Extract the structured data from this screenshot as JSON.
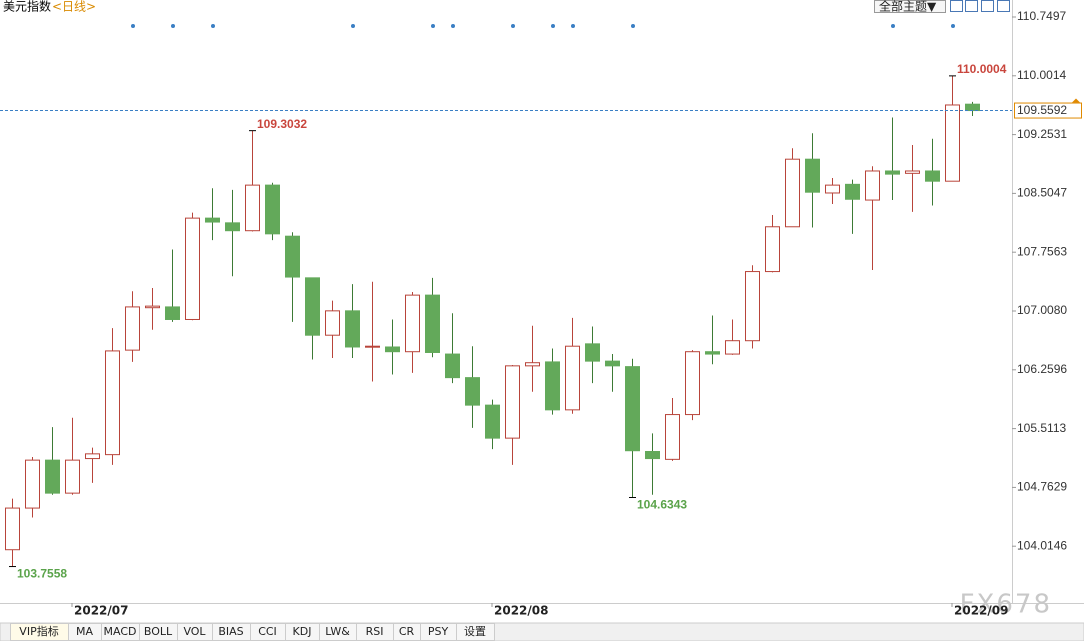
{
  "chart_data": {
    "type": "candlestick",
    "title": "美元指数",
    "subtitle": "<日线>",
    "categories": [
      null,
      null,
      null,
      "2022/07",
      null,
      null,
      null,
      null,
      null,
      null,
      null,
      null,
      null,
      null,
      null,
      null,
      null,
      null,
      null,
      null,
      null,
      null,
      null,
      null,
      "2022/08",
      null,
      null,
      null,
      null,
      null,
      null,
      null,
      null,
      null,
      null,
      null,
      null,
      null,
      null,
      null,
      null,
      null,
      null,
      null,
      null,
      null,
      null,
      "2022/09",
      null
    ],
    "series": [
      {
        "name": "美元指数",
        "up_color": "#b8443a",
        "down_color": "#63a95a",
        "open": [
          103.97,
          104.5,
          105.11,
          104.69,
          105.13,
          105.18,
          106.51,
          107.05,
          107.06,
          106.9,
          108.19,
          108.13,
          108.03,
          108.61,
          107.96,
          107.43,
          106.7,
          107.01,
          106.55,
          106.55,
          106.49,
          107.21,
          106.46,
          106.16,
          105.81,
          105.39,
          106.31,
          106.36,
          105.75,
          106.59,
          106.37,
          106.3,
          105.22,
          105.12,
          105.69,
          106.49,
          106.46,
          106.63,
          107.51,
          108.08,
          108.94,
          108.51,
          108.62,
          108.42,
          108.79,
          108.76,
          108.79,
          108.66,
          109.64
        ],
        "high": [
          104.62,
          105.15,
          105.53,
          105.65,
          105.27,
          106.79,
          107.26,
          107.3,
          107.79,
          108.26,
          108.57,
          108.55,
          109.3032,
          108.64,
          108.01,
          107.43,
          107.14,
          107.35,
          107.38,
          106.9,
          107.25,
          107.43,
          106.98,
          106.56,
          105.88,
          106.32,
          106.82,
          106.53,
          106.92,
          106.81,
          106.46,
          106.4,
          105.45,
          105.9,
          106.51,
          106.95,
          106.9,
          107.59,
          108.23,
          109.08,
          109.27,
          108.7,
          108.68,
          108.85,
          109.47,
          109.12,
          109.2,
          110.0004,
          109.67
        ],
        "low": [
          103.7558,
          104.38,
          104.67,
          104.67,
          104.82,
          105.05,
          106.36,
          106.77,
          106.87,
          106.89,
          107.91,
          107.45,
          108.02,
          107.91,
          106.87,
          106.39,
          106.41,
          106.41,
          106.11,
          106.2,
          106.22,
          106.42,
          106.09,
          105.52,
          105.25,
          105.05,
          105.98,
          105.69,
          105.7,
          106.09,
          105.98,
          104.6343,
          104.67,
          105.1,
          105.62,
          106.33,
          106.45,
          106.53,
          107.5,
          108.08,
          108.07,
          108.37,
          107.99,
          107.53,
          108.42,
          108.27,
          108.35,
          108.66,
          109.49
        ],
        "close": [
          104.5,
          105.11,
          104.69,
          105.11,
          105.19,
          106.5,
          107.06,
          107.07,
          106.9,
          108.19,
          108.14,
          108.03,
          108.61,
          107.99,
          107.44,
          106.7,
          107.01,
          106.55,
          106.56,
          106.49,
          107.21,
          106.48,
          106.16,
          105.81,
          105.39,
          106.31,
          106.35,
          105.75,
          106.56,
          106.37,
          106.31,
          105.23,
          105.13,
          105.69,
          106.49,
          106.46,
          106.63,
          107.51,
          108.08,
          108.94,
          108.52,
          108.61,
          108.43,
          108.79,
          108.75,
          108.79,
          108.66,
          109.63,
          109.5592
        ]
      }
    ],
    "ylim": [
      103.33,
      110.966
    ],
    "yticks": [
      110.7497,
      110.0014,
      109.2531,
      108.5047,
      107.7563,
      {
        "value": 107.008,
        "label": "107.0080"
      },
      106.2596,
      105.5113,
      104.7629,
      104.0146
    ],
    "grid": false,
    "last_price_line": true,
    "max_color": "#c9463d",
    "min_color": "#5aa34a",
    "last_color": "#e08a00"
  },
  "ui": {
    "theme_button": "全部主题▼",
    "watermark": "FX678",
    "toolbar": [
      "VIP指标",
      "MA",
      "MACD",
      "BOLL",
      "VOL",
      "BIAS",
      "CCI",
      "KDJ",
      "LW&",
      "RSI",
      "CR",
      "PSY",
      "设置"
    ]
  }
}
